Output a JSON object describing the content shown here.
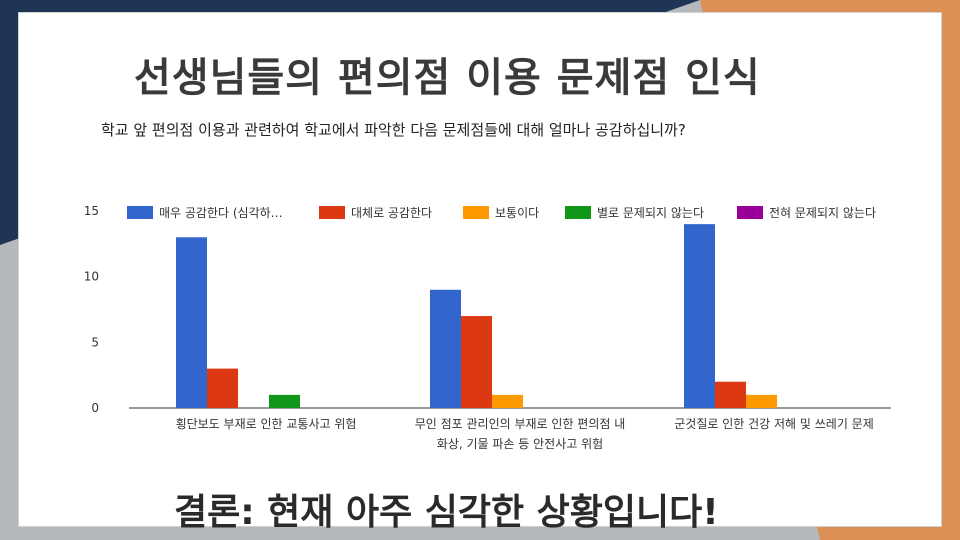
{
  "title": "선생님들의 편의점 이용 문제점 인식",
  "question": "학교 앞 편의점 이용과 관련하여 학교에서 파악한 다음 문제점들에 대해 얼마나 공감하십니까?",
  "conclusion": "결론: 현재 아주 심각한 상황입니다!",
  "chart_data": {
    "type": "bar",
    "categories": [
      [
        "횡단보도 부재로 인한 교통사고 위험"
      ],
      [
        "무인 점포 관리인의 부재로 인한 편의점 내",
        "화상, 기물 파손 등 안전사고 위험"
      ],
      [
        "군것질로 인한 건강 저해 및 쓰레기 문제"
      ]
    ],
    "series": [
      {
        "name": "매우 공감한다 (심각하…",
        "color": "#3366cc",
        "values": [
          13,
          9,
          14
        ]
      },
      {
        "name": "대체로 공감한다",
        "color": "#dc3912",
        "values": [
          3,
          7,
          2
        ]
      },
      {
        "name": "보통이다",
        "color": "#ff9900",
        "values": [
          0,
          1,
          1
        ]
      },
      {
        "name": "별로 문제되지 않는다",
        "color": "#109618",
        "values": [
          1,
          0,
          0
        ]
      },
      {
        "name": "전혀 문제되지 않는다",
        "color": "#990099",
        "values": [
          0,
          0,
          0
        ]
      }
    ],
    "yticks": [
      0,
      5,
      10,
      15
    ],
    "ylim": [
      0,
      15
    ],
    "legend_position": "top",
    "grid": false
  }
}
